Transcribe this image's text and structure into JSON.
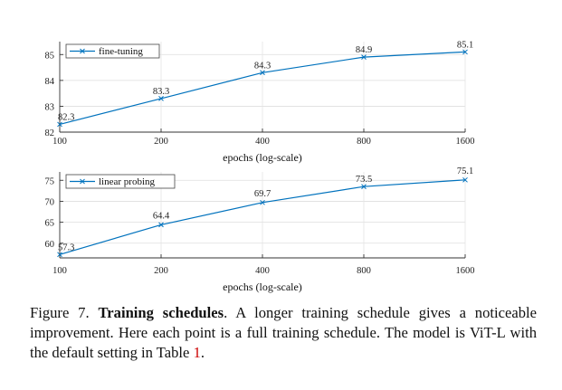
{
  "chart_data": [
    {
      "type": "line",
      "x": [
        100,
        200,
        400,
        800,
        1600
      ],
      "x_tick_labels": [
        "100",
        "200",
        "400",
        "800",
        "1600"
      ],
      "xscale": "log",
      "xlabel": "epochs (log-scale)",
      "ylim": [
        82,
        85.5
      ],
      "y_ticks": [
        "82",
        "83",
        "84",
        "85"
      ],
      "grid": true,
      "legend_position": "top-left",
      "series": [
        {
          "name": "fine-tuning",
          "values": [
            82.3,
            83.3,
            84.3,
            84.9,
            85.1
          ],
          "value_labels": [
            "82.3",
            "83.3",
            "84.3",
            "84.9",
            "85.1"
          ],
          "color": "#0072BD",
          "marker": "x"
        }
      ]
    },
    {
      "type": "line",
      "x": [
        100,
        200,
        400,
        800,
        1600
      ],
      "x_tick_labels": [
        "100",
        "200",
        "400",
        "800",
        "1600"
      ],
      "xscale": "log",
      "xlabel": "epochs (log-scale)",
      "ylim": [
        56.5,
        77
      ],
      "y_ticks": [
        "60",
        "65",
        "70",
        "75"
      ],
      "grid": true,
      "legend_position": "top-left",
      "series": [
        {
          "name": "linear probing",
          "values": [
            57.3,
            64.4,
            69.7,
            73.5,
            75.1
          ],
          "value_labels": [
            "57.3",
            "64.4",
            "69.7",
            "73.5",
            "75.1"
          ],
          "color": "#0072BD",
          "marker": "x"
        }
      ]
    }
  ],
  "caption": {
    "prefix": "Figure 7. ",
    "bold": "Training schedules",
    "middle": ". A longer training schedule gives a noticeable improvement. Here each point is a full training schedule. The model is ViT-L with the default setting in Table ",
    "ref": "1",
    "suffix": "."
  }
}
